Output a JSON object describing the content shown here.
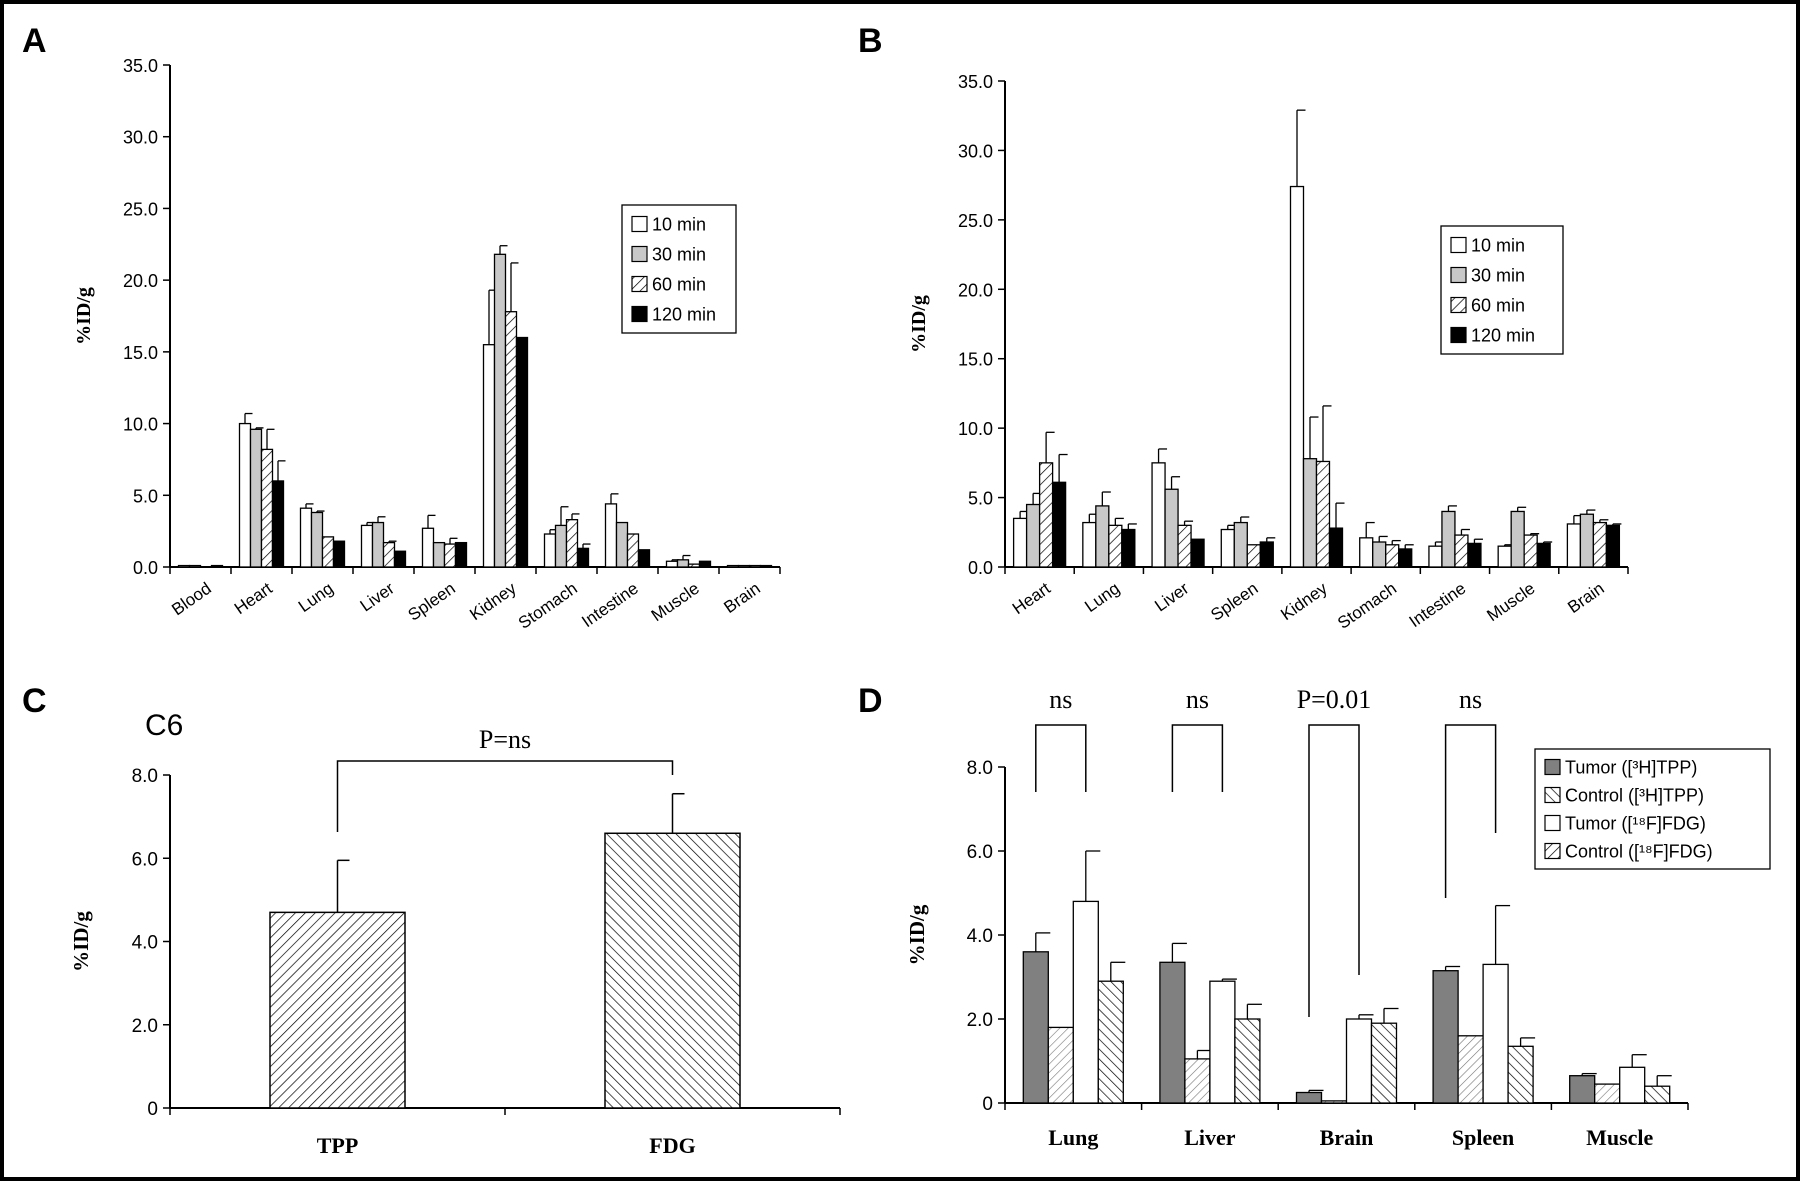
{
  "panels": {
    "A": {
      "letter": "A"
    },
    "B": {
      "letter": "B"
    },
    "C": {
      "letter": "C",
      "subtitle": "C6",
      "comparison": "P=ns"
    },
    "D": {
      "letter": "D",
      "comparisons": [
        "ns",
        "ns",
        "P=0.01",
        "ns"
      ]
    }
  },
  "colors": {
    "white": "#ffffff",
    "gray": "#c8c8c8",
    "black": "#000000",
    "dark_gray": "#808080"
  },
  "chart_data": [
    {
      "id": "A",
      "type": "bar",
      "ylabel": "%ID/g",
      "ylim": [
        0,
        35
      ],
      "yticks": [
        "0.0",
        "5.0",
        "10.0",
        "15.0",
        "20.0",
        "25.0",
        "30.0",
        "35.0"
      ],
      "categories": [
        "Blood",
        "Heart",
        "Lung",
        "Liver",
        "Spleen",
        "Kidney",
        "Stomach",
        "Intestine",
        "Muscle",
        "Brain"
      ],
      "legend_position": "top-right",
      "series": [
        {
          "name": "10 min",
          "fill": "white",
          "values": [
            0.1,
            10.0,
            4.1,
            2.9,
            2.7,
            15.5,
            2.3,
            4.4,
            0.4,
            0.1
          ],
          "errors": [
            0.0,
            0.7,
            0.3,
            0.2,
            0.9,
            3.8,
            0.3,
            0.7,
            0.1,
            0.0
          ]
        },
        {
          "name": "30 min",
          "fill": "gray",
          "values": [
            0.1,
            9.6,
            3.8,
            3.1,
            1.7,
            21.8,
            2.9,
            3.1,
            0.5,
            0.1
          ],
          "errors": [
            0.0,
            0.1,
            0.1,
            0.4,
            0.0,
            0.6,
            1.3,
            0.0,
            0.3,
            0.0
          ]
        },
        {
          "name": "60 min",
          "fill": "hatch",
          "values": [
            0.0,
            8.2,
            2.1,
            1.7,
            1.6,
            17.8,
            3.3,
            2.3,
            0.2,
            0.1
          ],
          "errors": [
            0.0,
            1.4,
            0.0,
            0.1,
            0.4,
            3.4,
            0.4,
            0.0,
            0.0,
            0.0
          ]
        },
        {
          "name": "120 min",
          "fill": "black",
          "values": [
            0.1,
            6.0,
            1.8,
            1.1,
            1.7,
            16.0,
            1.3,
            1.2,
            0.4,
            0.1
          ],
          "errors": [
            0.0,
            1.4,
            0.0,
            0.0,
            0.0,
            0.0,
            0.3,
            0.0,
            0.0,
            0.0
          ]
        }
      ]
    },
    {
      "id": "B",
      "type": "bar",
      "ylabel": "%ID/g",
      "ylim": [
        0,
        35
      ],
      "yticks": [
        "0.0",
        "5.0",
        "10.0",
        "15.0",
        "20.0",
        "25.0",
        "30.0",
        "35.0"
      ],
      "categories": [
        "Heart",
        "Lung",
        "Liver",
        "Spleen",
        "Kidney",
        "Stomach",
        "Intestine",
        "Muscle",
        "Brain"
      ],
      "legend_position": "top-right",
      "series": [
        {
          "name": "10 min",
          "fill": "white",
          "values": [
            3.5,
            3.2,
            7.5,
            2.7,
            27.4,
            2.1,
            1.5,
            1.5,
            3.1
          ],
          "errors": [
            0.5,
            0.6,
            1.0,
            0.3,
            5.5,
            1.1,
            0.3,
            0.1,
            0.6
          ]
        },
        {
          "name": "30 min",
          "fill": "gray",
          "values": [
            4.5,
            4.4,
            5.6,
            3.2,
            7.8,
            1.8,
            4.0,
            4.0,
            3.8
          ],
          "errors": [
            0.8,
            1.0,
            0.9,
            0.4,
            3.0,
            0.4,
            0.4,
            0.3,
            0.3
          ]
        },
        {
          "name": "60 min",
          "fill": "hatch",
          "values": [
            7.5,
            3.0,
            3.0,
            1.6,
            7.6,
            1.6,
            2.3,
            2.3,
            3.2
          ],
          "errors": [
            2.2,
            0.5,
            0.3,
            0.0,
            4.0,
            0.3,
            0.4,
            0.1,
            0.2
          ]
        },
        {
          "name": "120 min",
          "fill": "black",
          "values": [
            6.1,
            2.7,
            2.0,
            1.8,
            2.8,
            1.3,
            1.7,
            1.7,
            3.0
          ],
          "errors": [
            2.0,
            0.4,
            0.0,
            0.3,
            1.8,
            0.3,
            0.3,
            0.1,
            0.1
          ]
        }
      ]
    },
    {
      "id": "C",
      "type": "bar",
      "title": "C6",
      "ylabel": "%ID/g",
      "ylim": [
        0,
        8
      ],
      "yticks": [
        "0",
        "2.0",
        "4.0",
        "6.0",
        "8.0"
      ],
      "categories": [
        "TPP",
        "FDG"
      ],
      "values": [
        4.7,
        6.6
      ],
      "errors": [
        1.25,
        0.95
      ],
      "fills": [
        "hatch-right",
        "hatch-left"
      ],
      "annotation": "P=ns"
    },
    {
      "id": "D",
      "type": "bar",
      "ylabel": "%ID/g",
      "ylim": [
        0,
        8
      ],
      "yticks": [
        "0",
        "2.0",
        "4.0",
        "6.0",
        "8.0"
      ],
      "categories": [
        "Lung",
        "Liver",
        "Brain",
        "Spleen",
        "Muscle"
      ],
      "legend_position": "top-right",
      "annotations": [
        "ns",
        "ns",
        "P=0.01",
        "ns"
      ],
      "series": [
        {
          "name": "Tumor ([³H]TPP)",
          "fill": "dark_gray",
          "values": [
            3.6,
            3.35,
            0.25,
            3.15,
            0.65
          ],
          "errors": [
            0.45,
            0.45,
            0.05,
            0.1,
            0.05
          ]
        },
        {
          "name": "Control ([³H]TPP)",
          "fill": "hatch-light",
          "values": [
            1.8,
            1.05,
            0.05,
            1.6,
            0.45
          ],
          "errors": [
            0.0,
            0.2,
            0.0,
            0.0,
            0.0
          ]
        },
        {
          "name": "Tumor ([¹⁸F]FDG)",
          "fill": "white",
          "values": [
            4.8,
            2.9,
            2.0,
            3.3,
            0.85
          ],
          "errors": [
            1.2,
            0.05,
            0.1,
            1.4,
            0.3
          ]
        },
        {
          "name": "Control ([¹⁸F]FDG)",
          "fill": "hatch-left",
          "values": [
            2.9,
            2.0,
            1.9,
            1.35,
            0.4
          ],
          "errors": [
            0.45,
            0.35,
            0.35,
            0.2,
            0.25
          ]
        }
      ]
    }
  ]
}
